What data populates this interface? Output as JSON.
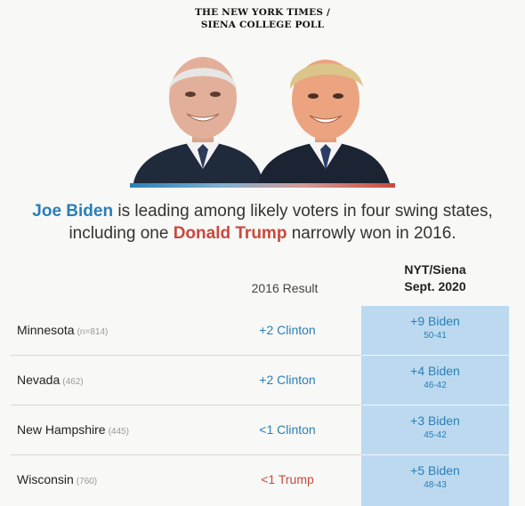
{
  "masthead": {
    "line1": "THE NEW YORK TIMES /",
    "line2": "SIENA COLLEGE POLL"
  },
  "photos": {
    "left_subject": "Joe Biden",
    "right_subject": "Donald Trump",
    "accent_blue": "#2a7fb6",
    "accent_red": "#c9493d"
  },
  "headline": {
    "biden": "Joe Biden",
    "part1": " is leading among likely voters in four swing states,",
    "part2": "including one ",
    "trump": "Donald Trump",
    "part3": " narrowly won in 2016."
  },
  "table": {
    "col_2016": "2016 Result",
    "col_nyt_line1": "NYT/Siena",
    "col_nyt_line2": "Sept. 2020",
    "rows": [
      {
        "state": "Minnesota",
        "n": "(n=814)",
        "result": "+2 Clinton",
        "result_party": "clinton",
        "margin": "+9 Biden",
        "split": "50-41"
      },
      {
        "state": "Nevada",
        "n": "(462)",
        "result": "+2 Clinton",
        "result_party": "clinton",
        "margin": "+4 Biden",
        "split": "46-42"
      },
      {
        "state": "New Hampshire",
        "n": "(445)",
        "result": "<1 Clinton",
        "result_party": "clinton",
        "margin": "+3 Biden",
        "split": "45-42"
      },
      {
        "state": "Wisconsin",
        "n": "(760)",
        "result": "<1 Trump",
        "result_party": "trump",
        "margin": "+5 Biden",
        "split": "48-43"
      }
    ]
  }
}
